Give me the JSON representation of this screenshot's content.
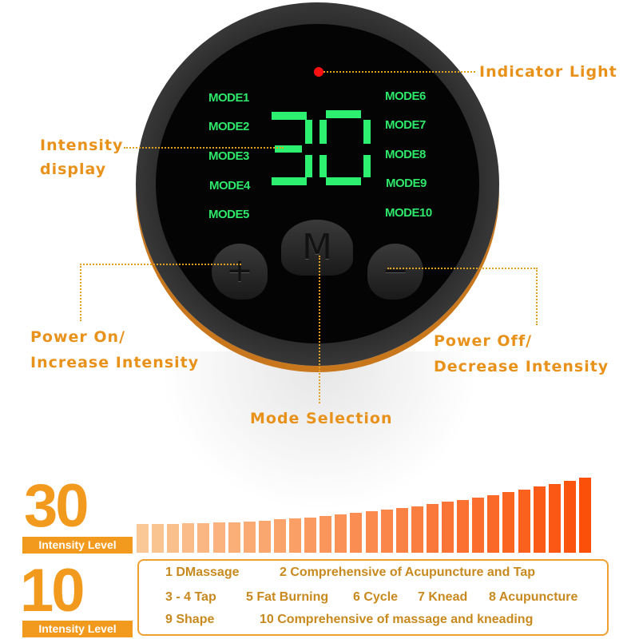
{
  "device": {
    "display_value": "30",
    "modes_left": [
      "MODE1",
      "MODE2",
      "MODE3",
      "MODE4",
      "MODE5"
    ],
    "modes_right": [
      "MODE6",
      "MODE7",
      "MODE8",
      "MODE9",
      "MODE10"
    ],
    "plus_button": "+",
    "mode_button": "M",
    "minus_button": "−",
    "indicator_color": "#ff1010",
    "display_color": "#2ef070"
  },
  "callouts": {
    "indicator": "Indicator Light",
    "intensity_1": "Intensity",
    "intensity_2": "display",
    "power_on_1": "Power On/",
    "power_on_2": "Increase Intensity",
    "power_off_1": "Power Off/",
    "power_off_2": "Decrease Intensity",
    "mode_selection": "Mode Selection"
  },
  "levels": {
    "intensity_count": "30",
    "intensity_label": "Intensity Level",
    "mode_count": "10",
    "mode_label": "Intensity Level"
  },
  "mode_list": {
    "row1": [
      "1  DMassage",
      "2  Comprehensive of Acupuncture and Tap"
    ],
    "row2": [
      "3  -  4 Tap",
      "5  Fat Burning",
      "6  Cycle",
      "7  Knead",
      "8  Acupuncture"
    ],
    "row3": [
      "9  Shape",
      "10   Comprehensive of massage and kneading"
    ]
  },
  "accent_color": "#f29a1e"
}
